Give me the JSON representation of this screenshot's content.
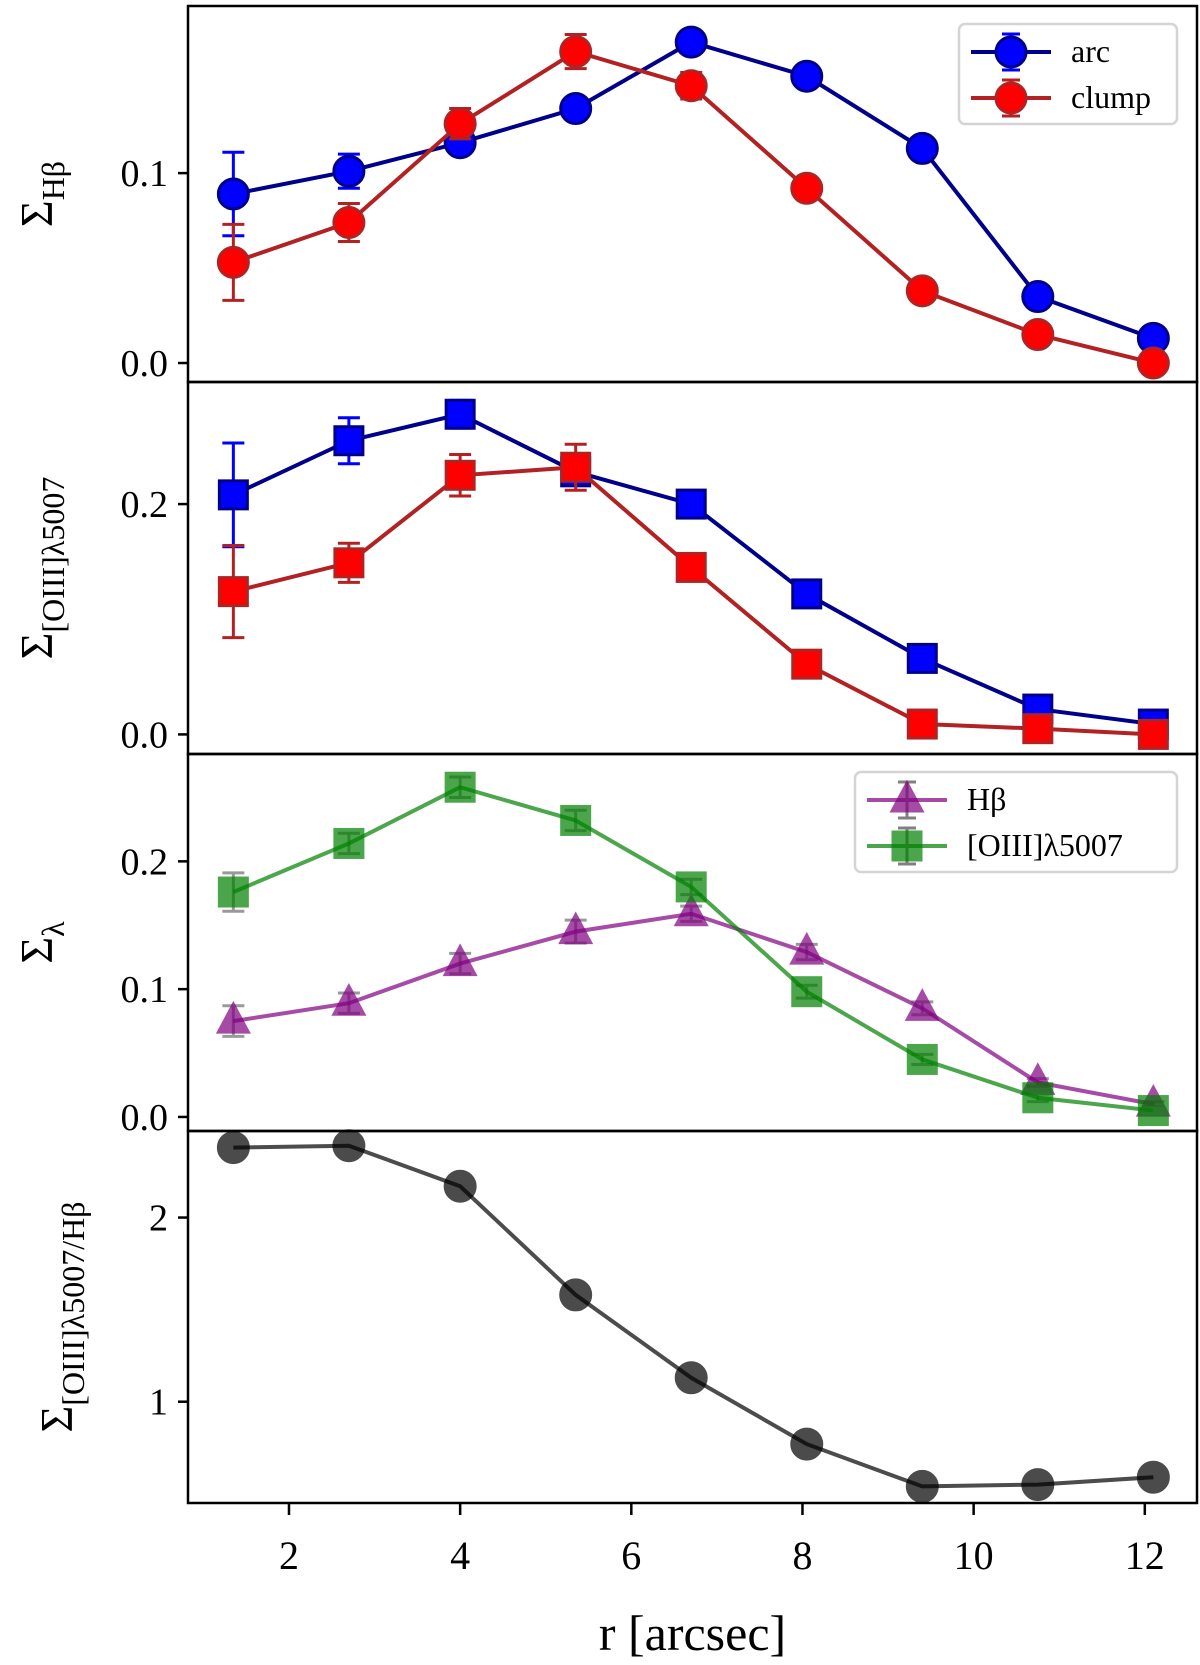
{
  "chart_data": [
    {
      "type": "line",
      "ylabel": {
        "symbol": "Σ",
        "sub": "Hβ"
      },
      "ylim": [
        -0.01,
        0.188
      ],
      "yticks": [
        0.0,
        0.1
      ],
      "ytick_labels": [
        "0.0",
        "0.1"
      ],
      "legend": "top-right",
      "series": [
        {
          "name": "arc",
          "marker": "circle",
          "line_color": "#00008b",
          "marker_color": "#0000ff",
          "err_color": "#0000ff",
          "x": [
            1.35,
            2.7,
            4.0,
            5.35,
            6.7,
            8.05,
            9.4,
            10.75,
            12.1
          ],
          "y": [
            0.089,
            0.101,
            0.116,
            0.134,
            0.169,
            0.151,
            0.113,
            0.035,
            0.013
          ],
          "yerr": [
            0.022,
            0.009,
            0.005,
            0.005,
            0.005,
            0.005,
            0.003,
            0.003,
            0.002
          ]
        },
        {
          "name": "clump",
          "marker": "circle",
          "line_color": "#b22222",
          "marker_color": "#ff0000",
          "err_color": "#b22222",
          "x": [
            1.35,
            2.7,
            4.0,
            5.35,
            6.7,
            8.05,
            9.4,
            10.75,
            12.1
          ],
          "y": [
            0.053,
            0.074,
            0.126,
            0.164,
            0.146,
            0.092,
            0.038,
            0.015,
            0.0
          ],
          "yerr": [
            0.02,
            0.01,
            0.008,
            0.009,
            0.007,
            0.004,
            0.002,
            0.002,
            0.001
          ]
        }
      ]
    },
    {
      "type": "line",
      "ylabel": {
        "symbol": "Σ",
        "sub": "[OIII]λ5007"
      },
      "ylim": [
        -0.017,
        0.306
      ],
      "yticks": [
        0.0,
        0.2
      ],
      "ytick_labels": [
        "0.0",
        "0.2"
      ],
      "series": [
        {
          "marker": "square",
          "line_color": "#00008b",
          "marker_color": "#0000ff",
          "err_color": "#0000ff",
          "x": [
            1.35,
            2.7,
            4.0,
            5.35,
            6.7,
            8.05,
            9.4,
            10.75,
            12.1
          ],
          "y": [
            0.208,
            0.255,
            0.278,
            0.228,
            0.2,
            0.122,
            0.066,
            0.022,
            0.009
          ],
          "yerr": [
            0.045,
            0.02,
            0.012,
            0.01,
            0.005,
            0.004,
            0.003,
            0.003,
            0.002
          ]
        },
        {
          "marker": "square",
          "line_color": "#b22222",
          "marker_color": "#ff0000",
          "err_color": "#b22222",
          "x": [
            1.35,
            2.7,
            4.0,
            5.35,
            6.7,
            8.05,
            9.4,
            10.75,
            12.1
          ],
          "y": [
            0.124,
            0.149,
            0.225,
            0.232,
            0.145,
            0.061,
            0.009,
            0.005,
            0.0
          ],
          "yerr": [
            0.04,
            0.017,
            0.018,
            0.02,
            0.006,
            0.004,
            0.003,
            0.002,
            0.002
          ]
        }
      ]
    },
    {
      "type": "line",
      "ylabel": {
        "symbol": "Σ",
        "sub": "λ"
      },
      "ylim": [
        -0.011,
        0.284
      ],
      "yticks": [
        0.0,
        0.1,
        0.2
      ],
      "ytick_labels": [
        "0.0",
        "0.1",
        "0.2"
      ],
      "legend": "top-right",
      "series": [
        {
          "name": "Hβ",
          "marker": "triangle",
          "line_color": "#800080",
          "marker_color": "#800080",
          "err_color": "#808080",
          "x": [
            1.35,
            2.7,
            4.0,
            5.35,
            6.7,
            8.05,
            9.4,
            10.75,
            12.1
          ],
          "y": [
            0.075,
            0.089,
            0.12,
            0.145,
            0.159,
            0.129,
            0.085,
            0.027,
            0.01
          ],
          "yerr": [
            0.012,
            0.008,
            0.008,
            0.009,
            0.006,
            0.006,
            0.005,
            0.003,
            0.002
          ]
        },
        {
          "name": "[OIII]λ5007",
          "marker": "square",
          "line_color": "#008000",
          "marker_color": "#008000",
          "err_color": "#808080",
          "x": [
            1.35,
            2.7,
            4.0,
            5.35,
            6.7,
            8.05,
            9.4,
            10.75,
            12.1
          ],
          "y": [
            0.176,
            0.214,
            0.258,
            0.232,
            0.18,
            0.098,
            0.045,
            0.015,
            0.005
          ],
          "yerr": [
            0.015,
            0.008,
            0.008,
            0.008,
            0.006,
            0.005,
            0.004,
            0.003,
            0.002
          ]
        }
      ]
    },
    {
      "type": "line",
      "ylabel": {
        "symbol": "Σ",
        "sub": "[OIII]λ5007/Hβ"
      },
      "ylim": [
        0.45,
        2.47
      ],
      "yticks": [
        1,
        2
      ],
      "ytick_labels": [
        "1",
        "2"
      ],
      "xlabel": "r [arcsec]",
      "xlim": [
        0.82,
        12.61
      ],
      "xticks": [
        2,
        4,
        6,
        8,
        10,
        12
      ],
      "xtick_labels": [
        "2",
        "4",
        "6",
        "8",
        "10",
        "12"
      ],
      "series": [
        {
          "marker": "circle",
          "line_color": "#000000",
          "marker_color": "#000000",
          "err_color": "#000000",
          "x": [
            1.35,
            2.7,
            4.0,
            5.35,
            6.7,
            8.05,
            9.4,
            10.75,
            12.1
          ],
          "y": [
            2.38,
            2.39,
            2.17,
            1.58,
            1.13,
            0.77,
            0.54,
            0.55,
            0.59
          ]
        }
      ]
    }
  ]
}
